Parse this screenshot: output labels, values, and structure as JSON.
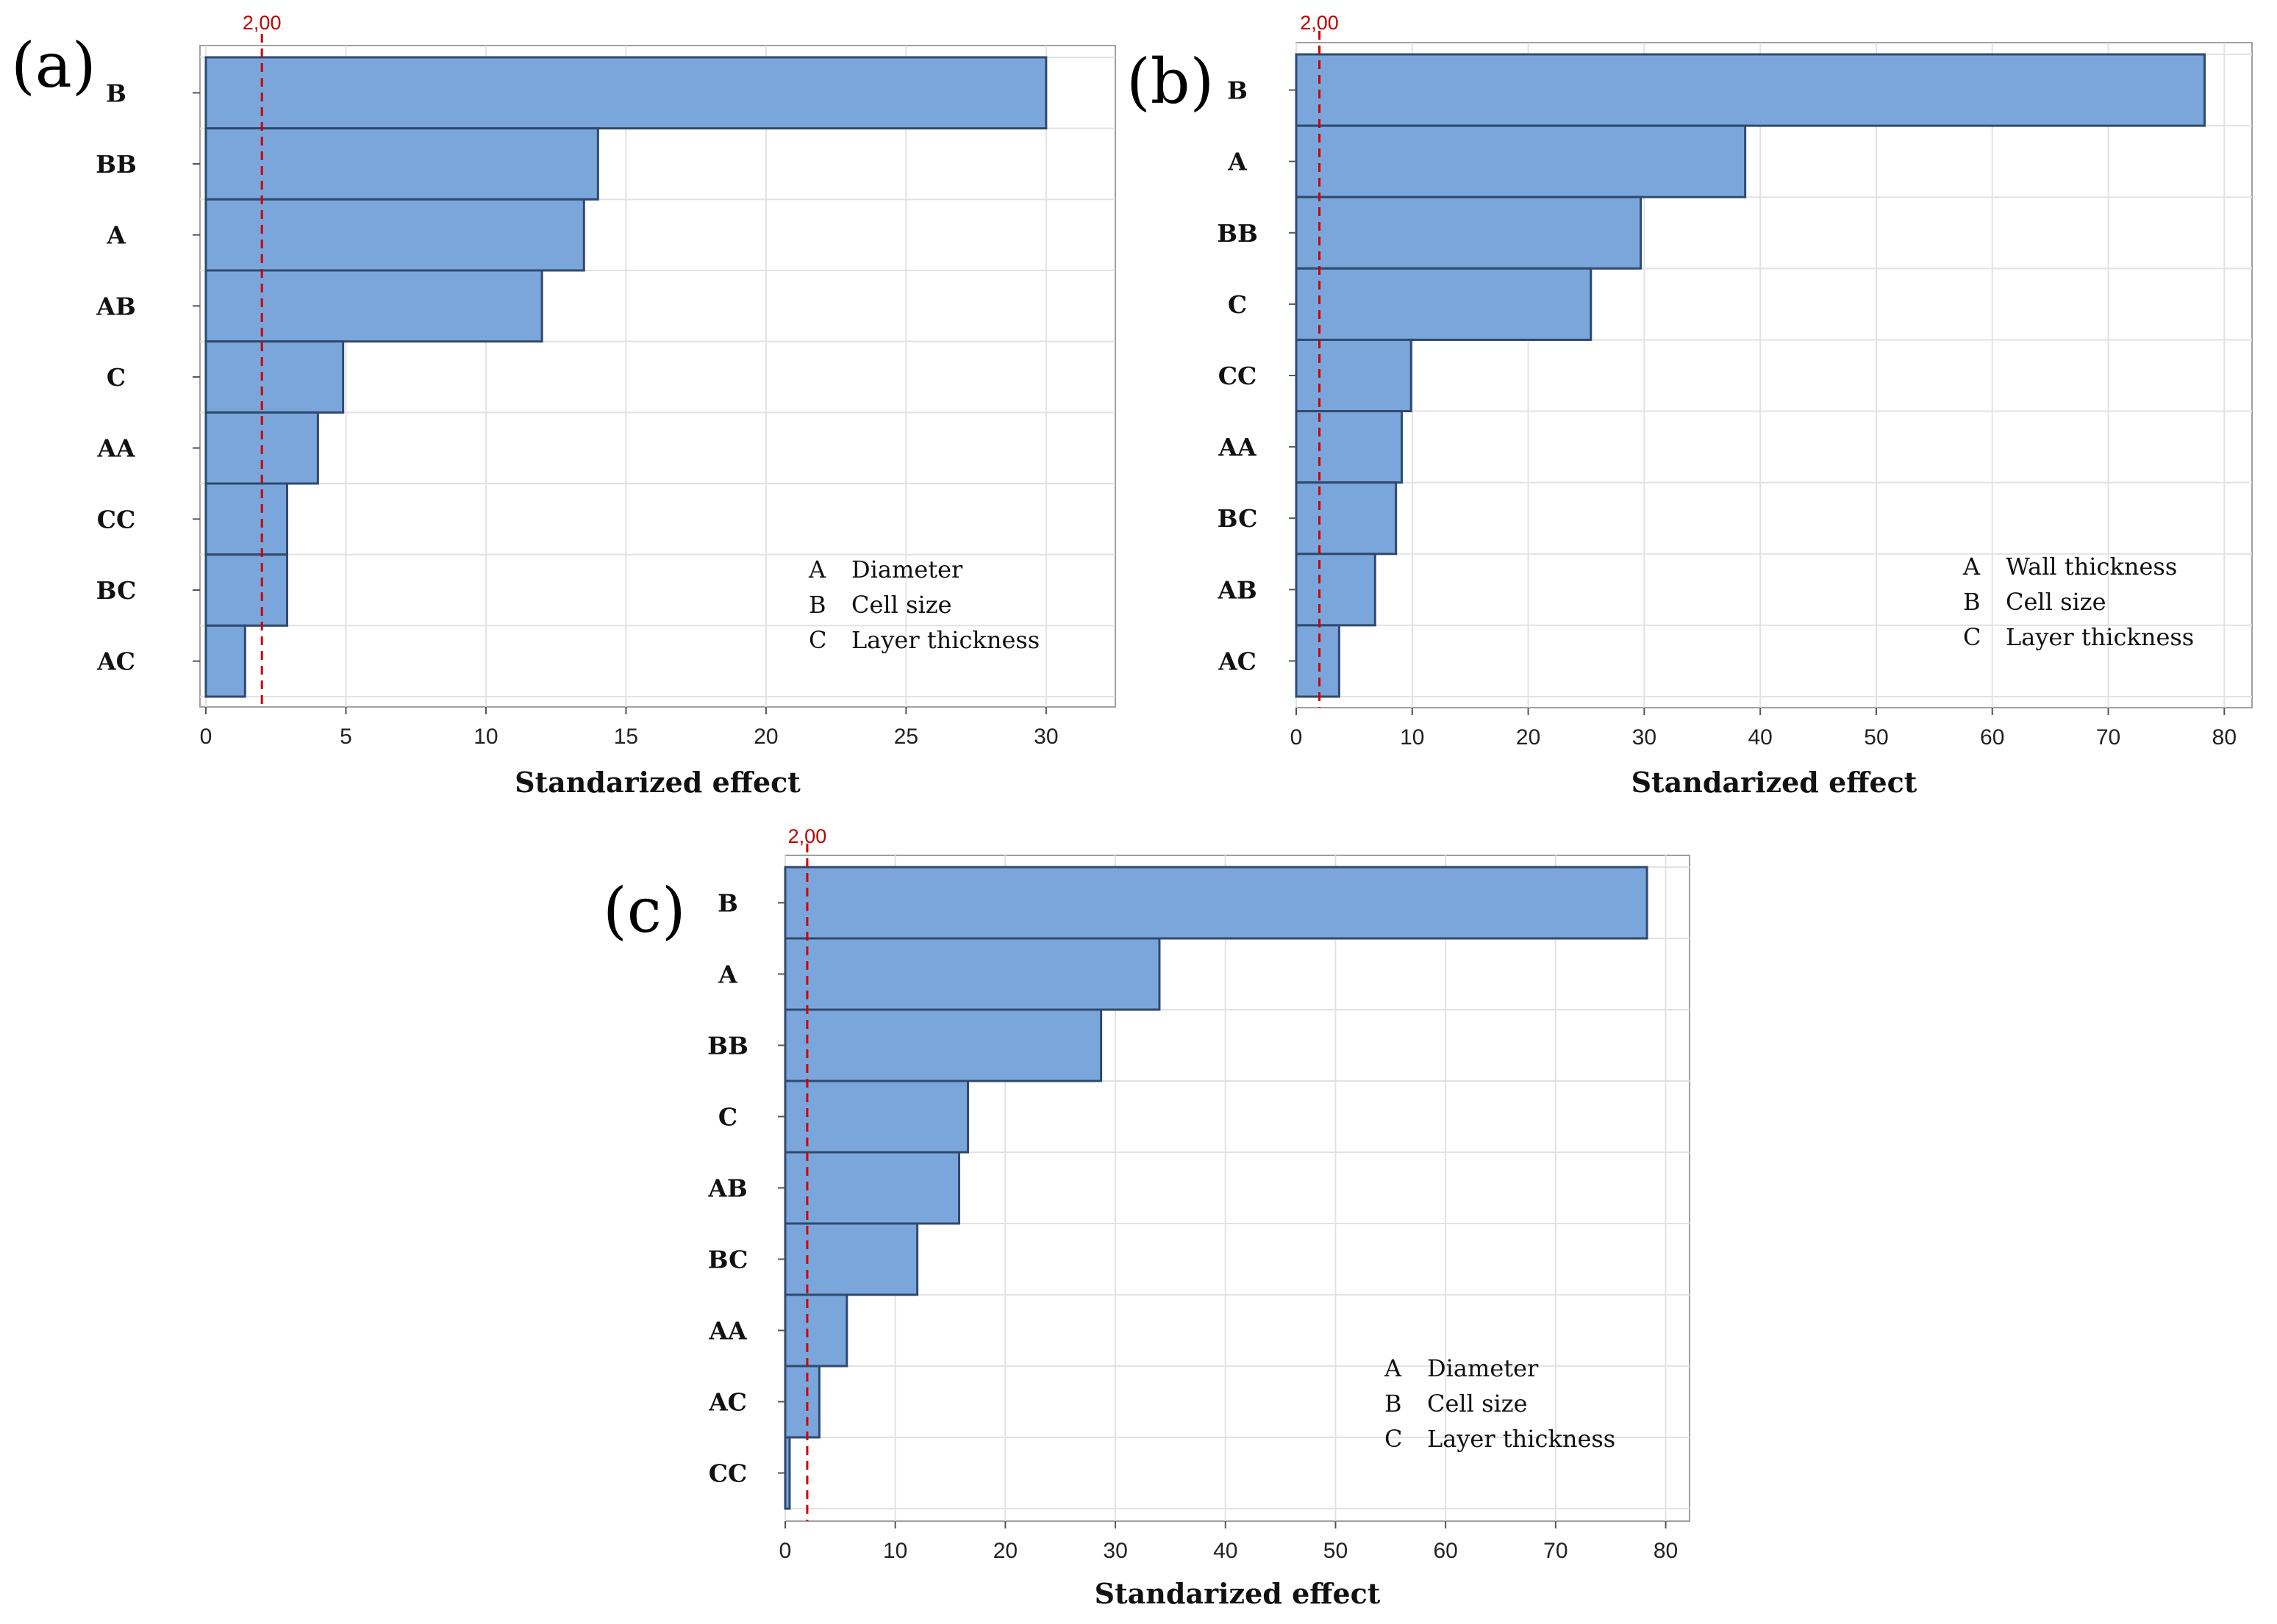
{
  "chart_data": [
    {
      "type": "bar",
      "orientation": "horizontal",
      "panel": "(a)",
      "categories": [
        "B",
        "BB",
        "A",
        "AB",
        "C",
        "AA",
        "CC",
        "BC",
        "AC"
      ],
      "values": [
        30.0,
        14.0,
        13.5,
        12.0,
        4.9,
        4.0,
        2.9,
        2.9,
        1.4
      ],
      "reference_line": {
        "value": 2.0,
        "label": "2,00"
      },
      "xlim": [
        0,
        31.5
      ],
      "xticks": [
        0,
        5,
        10,
        15,
        20,
        25,
        30
      ],
      "xlabel": "Standarized effect",
      "legend": [
        {
          "key": "A",
          "text": "Diameter"
        },
        {
          "key": "B",
          "text": "Cell size"
        },
        {
          "key": "C",
          "text": "Layer thickness"
        }
      ],
      "legend_position": "bottom-right",
      "grid": true
    },
    {
      "type": "bar",
      "orientation": "horizontal",
      "panel": "(b)",
      "categories": [
        "B",
        "A",
        "BB",
        "C",
        "CC",
        "AA",
        "BC",
        "AB",
        "AC"
      ],
      "values": [
        78.3,
        38.7,
        29.7,
        25.4,
        9.9,
        9.1,
        8.6,
        6.8,
        3.7
      ],
      "reference_line": {
        "value": 2.0,
        "label": "2,00"
      },
      "xlim": [
        0,
        81.5
      ],
      "xticks": [
        0,
        10,
        20,
        30,
        40,
        50,
        60,
        70,
        80
      ],
      "xlabel": "Standarized effect",
      "legend": [
        {
          "key": "A",
          "text": "Wall thickness"
        },
        {
          "key": "B",
          "text": "Cell size"
        },
        {
          "key": "C",
          "text": "Layer thickness"
        }
      ],
      "legend_position": "bottom-right",
      "grid": true
    },
    {
      "type": "bar",
      "orientation": "horizontal",
      "panel": "(c)",
      "categories": [
        "B",
        "A",
        "BB",
        "C",
        "AB",
        "BC",
        "AA",
        "AC",
        "CC"
      ],
      "values": [
        78.3,
        34.0,
        28.7,
        16.6,
        15.8,
        12.0,
        5.6,
        3.1,
        0.4
      ],
      "reference_line": {
        "value": 2.0,
        "label": "2,00"
      },
      "xlim": [
        0,
        81.5
      ],
      "xticks": [
        0,
        10,
        20,
        30,
        40,
        50,
        60,
        70,
        80
      ],
      "xlabel": "Standarized effect",
      "legend": [
        {
          "key": "A",
          "text": "Diameter"
        },
        {
          "key": "B",
          "text": "Cell size"
        },
        {
          "key": "C",
          "text": "Layer thickness"
        }
      ],
      "legend_position": "bottom-right",
      "grid": true
    }
  ],
  "colors": {
    "bar_fill": "#7ba6db",
    "bar_stroke": "#2f4a6e",
    "grid": "#e2e2e2",
    "frame": "#a0a0a0",
    "reference_line": "#cc0000"
  }
}
